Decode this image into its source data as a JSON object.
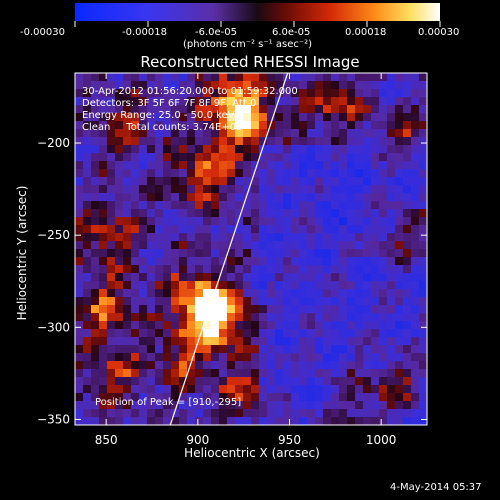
{
  "chart_data": {
    "type": "heatmap",
    "title": "Reconstructed RHESSI Image",
    "xlabel": "Heliocentric X (arcsec)",
    "ylabel": "Heliocentric Y (arcsec)",
    "x_range": [
      833,
      1025
    ],
    "y_range": [
      -353,
      -162
    ],
    "x_ticks": [
      850,
      900,
      950,
      1000
    ],
    "y_ticks": [
      -200,
      -250,
      -300,
      -350
    ],
    "colorbar": {
      "range": [
        -0.0003,
        0.0003
      ],
      "tick_labels": [
        "-0.00030",
        "-0.00018",
        "-6.0e-05",
        "6.0e-05",
        "0.00018",
        "0.00030"
      ],
      "unit_label": "(photons cm⁻² s⁻¹ asec⁻²)",
      "colormap": "blue-purple-red-yellow-white"
    },
    "sources": [
      {
        "x": 910,
        "y": -295,
        "strength": 1.0
      },
      {
        "x": 898,
        "y": -283,
        "strength": 0.55
      },
      {
        "x": 892,
        "y": -318,
        "strength": 0.45
      },
      {
        "x": 926,
        "y": -190,
        "strength": 0.75
      },
      {
        "x": 918,
        "y": -175,
        "strength": 0.6
      },
      {
        "x": 903,
        "y": -215,
        "strength": 0.55
      },
      {
        "x": 850,
        "y": -252,
        "strength": 0.45
      },
      {
        "x": 850,
        "y": -290,
        "strength": 0.5
      },
      {
        "x": 855,
        "y": -325,
        "strength": 0.4
      },
      {
        "x": 975,
        "y": -178,
        "strength": 0.6
      },
      {
        "x": 1015,
        "y": -248,
        "strength": 0.45
      },
      {
        "x": 1013,
        "y": -195,
        "strength": 0.4
      },
      {
        "x": 925,
        "y": -335,
        "strength": 0.4
      },
      {
        "x": 985,
        "y": -340,
        "strength": 0.35
      },
      {
        "x": 860,
        "y": -190,
        "strength": 0.35
      },
      {
        "x": 1010,
        "y": -330,
        "strength": 0.4
      }
    ],
    "limb_line": [
      [
        885,
        -353
      ],
      [
        949,
        -162
      ]
    ],
    "peak": [
      910,
      -295
    ]
  },
  "info": {
    "time_range": "30-Apr-2012 01:56:20.000 to 01:59:32.000",
    "detectors": "Detectors: 3F 5F 6F 7F 8F 9F, Att 0",
    "energy": "Energy Range: 25.0 - 50.0 keV",
    "clean": "Clean     Total counts: 3.74E+03",
    "peak_text": "Position of Peak = [910,-295]"
  },
  "footer_date": "4-May-2014 05:37"
}
